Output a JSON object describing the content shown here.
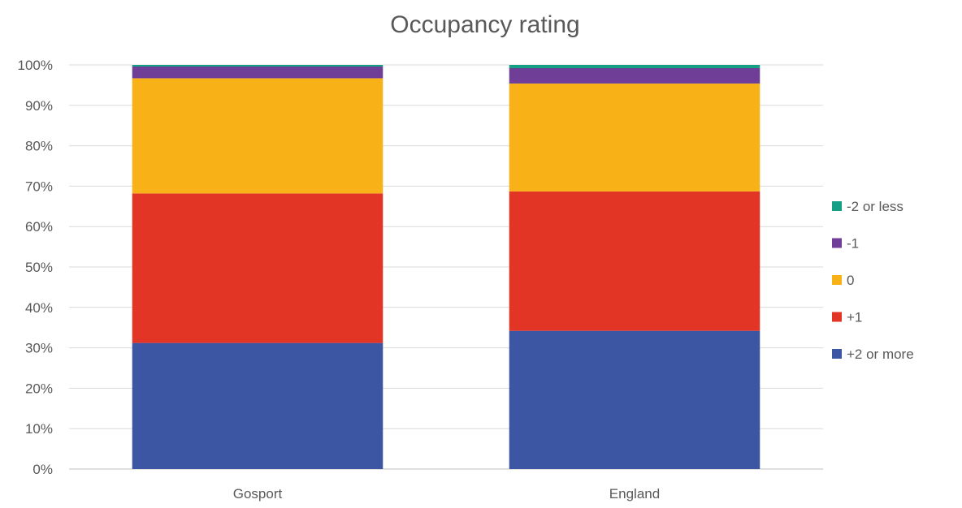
{
  "chart_data": {
    "type": "bar",
    "stacked": true,
    "percent_stacked": true,
    "title": "Occupancy rating",
    "xlabel": "",
    "ylabel": "",
    "categories": [
      "Gosport",
      "England"
    ],
    "ylim": [
      0,
      100
    ],
    "y_ticks": [
      "0%",
      "10%",
      "20%",
      "30%",
      "40%",
      "50%",
      "60%",
      "70%",
      "80%",
      "90%",
      "100%"
    ],
    "grid": true,
    "legend_position": "right",
    "series": [
      {
        "name": "+2 or more",
        "values": [
          31.2,
          34.2
        ],
        "color": "#3c56a4"
      },
      {
        "name": "+1",
        "values": [
          37.0,
          34.5
        ],
        "color": "#e33526"
      },
      {
        "name": "0",
        "values": [
          28.5,
          26.7
        ],
        "color": "#f8b117"
      },
      {
        "name": "-1",
        "values": [
          2.9,
          3.8
        ],
        "color": "#6f3f97"
      },
      {
        "name": "-2 or less",
        "values": [
          0.4,
          0.8
        ],
        "color": "#13a085"
      }
    ]
  }
}
